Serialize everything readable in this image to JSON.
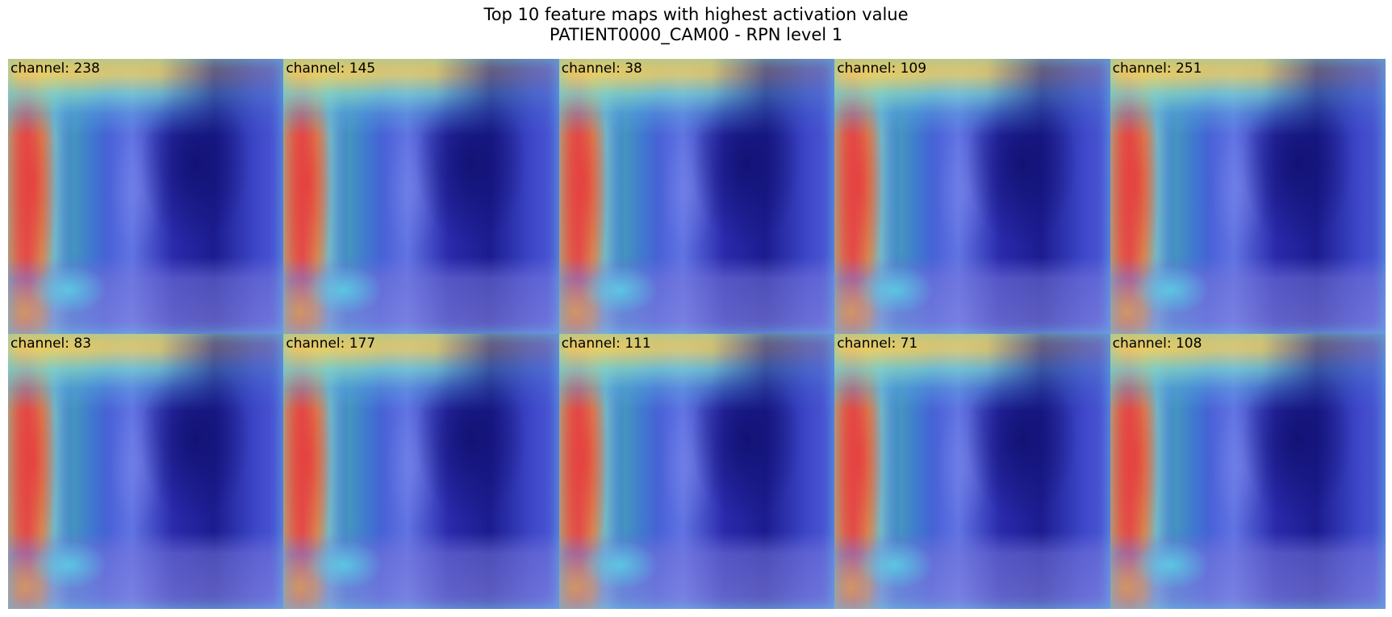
{
  "title": {
    "line1": "Top 10 feature maps with highest activation value",
    "line2": "PATIENT0000_CAM00 - RPN level 1"
  },
  "panels": [
    {
      "label": "channel: 238"
    },
    {
      "label": "channel: 145"
    },
    {
      "label": "channel: 38"
    },
    {
      "label": "channel: 109"
    },
    {
      "label": "channel: 251"
    },
    {
      "label": "channel: 83"
    },
    {
      "label": "channel: 177"
    },
    {
      "label": "channel: 111"
    },
    {
      "label": "channel: 71"
    },
    {
      "label": "channel: 108"
    }
  ]
}
